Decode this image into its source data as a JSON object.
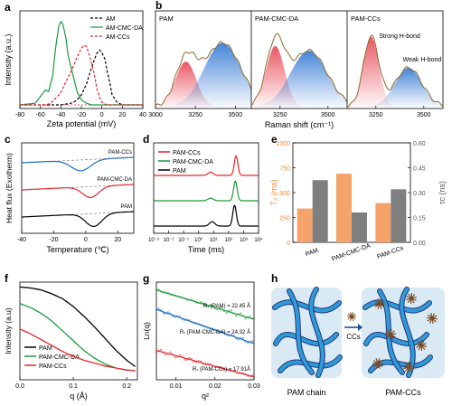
{
  "figure": {
    "panel_letters": [
      "a",
      "b",
      "c",
      "d",
      "e",
      "f",
      "g",
      "h"
    ]
  },
  "colors": {
    "black": "#000000",
    "green": "#1a9b3c",
    "red": "#e8262b",
    "blue": "#1f6fbf",
    "orange": "#f5a26b",
    "gray": "#7f7f7f",
    "peach_axis": "#f08a3a",
    "fill_red": "#e8505b",
    "fill_blue": "#3d7fd6",
    "fit_brown": "#8a6a2a",
    "strand_blue": "#2f9ad8",
    "strand_dark": "#23357a",
    "bg_panel": "#d9eaf4",
    "cluster_brown": "#7a4a25"
  },
  "chart_data": [
    {
      "id": "a",
      "type": "line",
      "title": "",
      "xlabel": "Zeta potential (mV)",
      "ylabel": "Intensity (a.u.)",
      "xlim": [
        -80,
        40
      ],
      "xticks": [
        "-80",
        "-60",
        "-40",
        "-20",
        "0",
        "20",
        "40"
      ],
      "legend": "top-right",
      "series": [
        {
          "name": "AM",
          "color": "black",
          "style": "dashed",
          "x": [
            -80,
            -60,
            -40,
            -30,
            -25,
            -20,
            -15,
            -10,
            -5,
            -2,
            0,
            3,
            5,
            8,
            10,
            15,
            20,
            40
          ],
          "y": [
            0,
            0,
            0,
            0.02,
            0.05,
            0.12,
            0.25,
            0.45,
            0.62,
            0.66,
            0.63,
            0.55,
            0.42,
            0.25,
            0.12,
            0.03,
            0,
            0
          ]
        },
        {
          "name": "AM-CMC-DA",
          "color": "green",
          "style": "solid",
          "x": [
            -80,
            -65,
            -60,
            -55,
            -52,
            -48,
            -45,
            -42,
            -40,
            -38,
            -35,
            -33,
            -30,
            -27,
            -24,
            -20,
            -15,
            -10,
            0,
            40
          ],
          "y": [
            0,
            0.02,
            0.1,
            0.18,
            0.16,
            0.35,
            0.7,
            0.95,
            1.0,
            0.97,
            0.8,
            0.6,
            0.45,
            0.3,
            0.15,
            0.06,
            0.02,
            0,
            0,
            0
          ]
        },
        {
          "name": "AM-CCs",
          "color": "red",
          "style": "dashed",
          "x": [
            -80,
            -55,
            -50,
            -45,
            -40,
            -35,
            -30,
            -25,
            -20,
            -17,
            -15,
            -13,
            -10,
            -7,
            -5,
            -2,
            0,
            5,
            40
          ],
          "y": [
            0,
            0,
            0.02,
            0.08,
            0.15,
            0.28,
            0.4,
            0.55,
            0.68,
            0.72,
            0.7,
            0.63,
            0.5,
            0.35,
            0.2,
            0.08,
            0.03,
            0,
            0
          ]
        }
      ]
    },
    {
      "id": "b",
      "type": "area",
      "title": "",
      "xlabel": "Raman shift (cm⁻¹)",
      "ylabel": "",
      "subpanels": [
        {
          "label": "PAM",
          "xticks": [
            "3000",
            "3250",
            "3500"
          ],
          "xlim": [
            3000,
            3600
          ],
          "peaks": [
            {
              "center": 3190,
              "height": 0.58,
              "width": 65,
              "fill": "red"
            },
            {
              "center": 3420,
              "height": 0.82,
              "width": 115,
              "fill": "blue"
            }
          ]
        },
        {
          "label": "PAM-CMC-DA",
          "xticks": [
            "3250",
            "3500"
          ],
          "xlim": [
            3100,
            3600
          ],
          "peaks": [
            {
              "center": 3225,
              "height": 0.78,
              "width": 48,
              "fill": "red"
            },
            {
              "center": 3400,
              "height": 0.72,
              "width": 95,
              "fill": "blue"
            }
          ]
        },
        {
          "label": "PAM-CCs",
          "xticks": [
            "3250",
            "3500"
          ],
          "xlim": [
            3100,
            3600
          ],
          "peaks": [
            {
              "center": 3225,
              "height": 0.9,
              "width": 40,
              "fill": "red"
            },
            {
              "center": 3420,
              "height": 0.5,
              "width": 70,
              "fill": "blue"
            }
          ]
        }
      ],
      "annotations": [
        "Strong H-bond",
        "Weak H-bond"
      ]
    },
    {
      "id": "c",
      "type": "line",
      "title": "",
      "xlabel": "Temperature (℃)",
      "ylabel": "Heat flux (Exotherm)",
      "xlim": [
        -40,
        30
      ],
      "xticks": [
        "-40",
        "-20",
        "0",
        "20"
      ],
      "series": [
        {
          "name": "PAM-CCs",
          "color": "blue",
          "offset": 2,
          "dip_center": -3,
          "dip_depth": 0.55,
          "dip_width": 6
        },
        {
          "name": "PAM-CMC-DA",
          "color": "red",
          "offset": 1,
          "dip_center": 3,
          "dip_depth": 0.55,
          "dip_width": 5
        },
        {
          "name": "PAM",
          "color": "black",
          "offset": 0,
          "dip_center": 5,
          "dip_depth": 0.65,
          "dip_width": 5
        }
      ]
    },
    {
      "id": "d",
      "type": "line",
      "title": "",
      "xlabel": "Time (ms)",
      "ylabel": "",
      "xscale": "log",
      "xlim": [
        -3,
        4
      ],
      "xticks": [
        "10⁻³",
        "10⁻²",
        "10⁻¹",
        "10⁰",
        "10¹",
        "10²",
        "10³",
        "10⁴"
      ],
      "legend": "top-left",
      "series": [
        {
          "name": "PAM-CCs",
          "color": "red",
          "offset": 2,
          "peaks": [
            {
              "logx": 0.8,
              "h": 0.15
            },
            {
              "logx": 2.5,
              "h": 0.9
            }
          ]
        },
        {
          "name": "PAM-CMC-DA",
          "color": "green",
          "offset": 1,
          "peaks": [
            {
              "logx": 0.8,
              "h": 0.12
            },
            {
              "logx": 2.45,
              "h": 0.9
            }
          ]
        },
        {
          "name": "PAM",
          "color": "black",
          "offset": 0,
          "peaks": [
            {
              "logx": 0.9,
              "h": 0.2
            },
            {
              "logx": 2.4,
              "h": 0.95
            }
          ]
        }
      ]
    },
    {
      "id": "e",
      "type": "bar",
      "title": "",
      "categories": [
        "PAM",
        "PAM-CMC-DA",
        "PAM-CCs"
      ],
      "ylabel_left": "T₂ (ms)",
      "ylabel_right": "τc (ns)",
      "ylim_left": [
        0,
        1000
      ],
      "ylim_right": [
        0,
        0.6
      ],
      "yticks_left": [
        "0",
        "250",
        "500",
        "750",
        "1000"
      ],
      "yticks_right": [
        "0.00",
        "0.15",
        "0.30",
        "0.45",
        "0.60"
      ],
      "series": [
        {
          "name": "T₂",
          "color": "orange",
          "axis": "left",
          "values": [
            340,
            690,
            395
          ]
        },
        {
          "name": "τc",
          "color": "gray",
          "axis": "right",
          "values": [
            0.375,
            0.18,
            0.32
          ]
        }
      ]
    },
    {
      "id": "f",
      "type": "line",
      "title": "",
      "xlabel": "q (Å)",
      "ylabel": "Intensity (a.u)",
      "xlim": [
        0,
        0.22
      ],
      "xticks": [
        "0.0",
        "0.1",
        "0.2"
      ],
      "legend": "bottom-left",
      "series": [
        {
          "name": "PAM",
          "color": "black",
          "x": [
            0,
            0.02,
            0.04,
            0.06,
            0.08,
            0.1,
            0.12,
            0.14,
            0.16,
            0.18,
            0.2,
            0.22
          ],
          "y": [
            0.95,
            0.94,
            0.92,
            0.88,
            0.83,
            0.75,
            0.65,
            0.54,
            0.42,
            0.3,
            0.2,
            0.12
          ]
        },
        {
          "name": "PAM-CMC-DA",
          "color": "green",
          "x": [
            0,
            0.02,
            0.04,
            0.06,
            0.08,
            0.1,
            0.12,
            0.14,
            0.16,
            0.18,
            0.2,
            0.22
          ],
          "y": [
            0.78,
            0.74,
            0.68,
            0.6,
            0.5,
            0.4,
            0.3,
            0.22,
            0.16,
            0.12,
            0.1,
            0.09
          ]
        },
        {
          "name": "PAM-CCs",
          "color": "red",
          "x": [
            0,
            0.02,
            0.04,
            0.06,
            0.08,
            0.1,
            0.12,
            0.14,
            0.16,
            0.18,
            0.2,
            0.22
          ],
          "y": [
            0.52,
            0.47,
            0.41,
            0.35,
            0.29,
            0.24,
            0.2,
            0.17,
            0.14,
            0.12,
            0.1,
            0.09
          ]
        }
      ]
    },
    {
      "id": "g",
      "type": "scatter",
      "title": "",
      "xlabel": "q²",
      "ylabel": "Ln(q)",
      "xlim": [
        0.005,
        0.03
      ],
      "xticks": [
        "0.01",
        "0.02",
        "0.03"
      ],
      "series": [
        {
          "name": "PAM",
          "color": "green",
          "intercept": 0.92,
          "slope": -0.3
        },
        {
          "name": "PAM-CMC-DA",
          "color": "blue",
          "intercept": 0.72,
          "slope": -0.35
        },
        {
          "name": "PAM-CCs",
          "color": "red",
          "intercept": 0.3,
          "slope": -0.27
        }
      ],
      "annotations": [
        "R₇ (PAM) = 22.45 Å",
        "R₇ (PAM-CMC-DA) = 24.32 Å",
        "R₇ (PAM-CCs) = 17.91Å"
      ]
    }
  ],
  "panel_c_labels": [
    "PAM-CCs",
    "PAM-CMC-DA",
    "PAM"
  ],
  "panel_h": {
    "arrow_label": "CCs",
    "left_caption": "PAM chain",
    "right_caption": "PAM-CCs"
  }
}
